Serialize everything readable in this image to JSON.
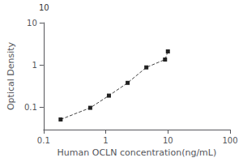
{
  "chart_data": {
    "type": "line",
    "log": true,
    "x": [
      0.188,
      0.563,
      1.125,
      2.25,
      4.5,
      9.0,
      10.0
    ],
    "values": [
      0.052,
      0.098,
      0.19,
      0.38,
      0.88,
      1.35,
      2.1
    ],
    "xlim": [
      0.1,
      100
    ],
    "ylim": [
      0.03,
      10
    ],
    "xticks": [
      0.1,
      1,
      10,
      100
    ],
    "yticks": [
      0.1,
      1,
      10
    ],
    "xlabel": "Human OCLN concentration(ng/mL)",
    "ylabel": "Optical Density",
    "annotations": [
      "10"
    ],
    "color": "#444444",
    "marker_color": "#222222",
    "marker": "square",
    "line_style": "dashed",
    "grid": false
  }
}
